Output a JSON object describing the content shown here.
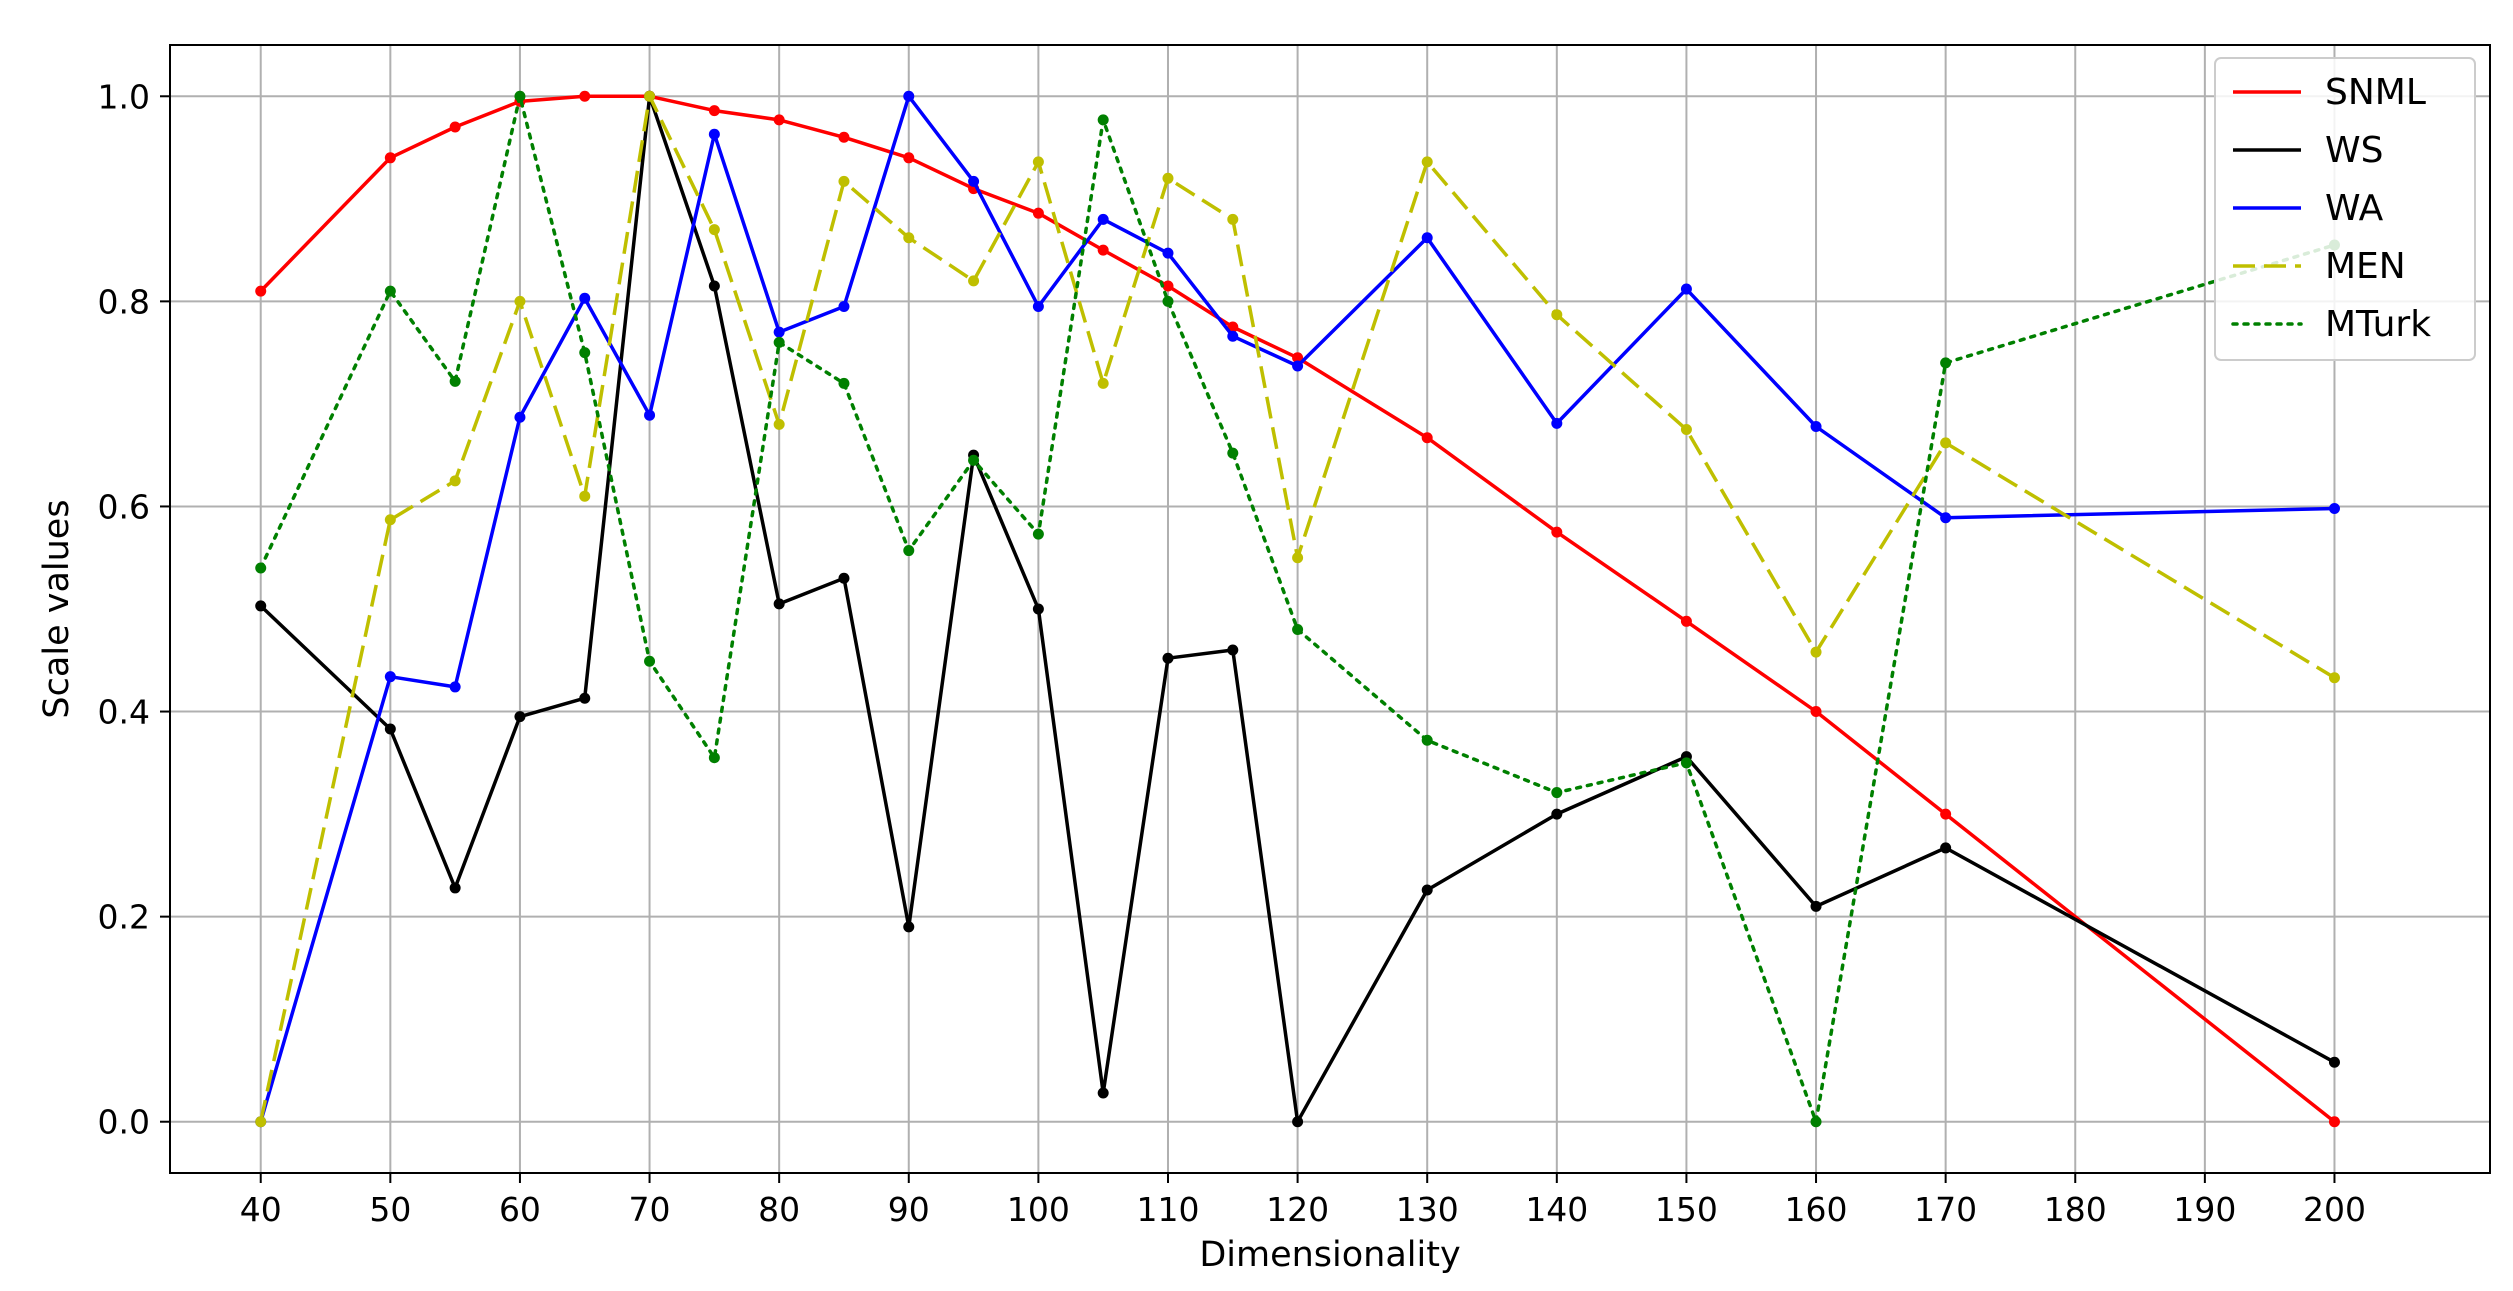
{
  "chart_data": {
    "type": "line",
    "xlabel": "Dimensionality",
    "ylabel": "Scale values",
    "xlim": [
      33,
      212
    ],
    "ylim": [
      -0.05,
      1.05
    ],
    "x_ticks": [
      40,
      50,
      60,
      70,
      80,
      90,
      100,
      110,
      120,
      130,
      140,
      150,
      160,
      170,
      180,
      190,
      200
    ],
    "y_ticks": [
      0.0,
      0.2,
      0.4,
      0.6,
      0.8,
      1.0
    ],
    "y_tick_labels": [
      "0.0",
      "0.2",
      "0.4",
      "0.6",
      "0.8",
      "1.0"
    ],
    "grid": true,
    "legend_position": "top-right",
    "x": [
      40,
      50,
      55,
      60,
      65,
      70,
      75,
      80,
      85,
      90,
      95,
      100,
      105,
      110,
      115,
      120,
      130,
      140,
      150,
      160,
      170,
      200
    ],
    "series": [
      {
        "name": "SNML",
        "color": "#ff0000",
        "style": "solid",
        "values": [
          0.81,
          0.94,
          0.97,
          0.995,
          1.0,
          1.0,
          0.986,
          0.977,
          0.96,
          0.94,
          0.91,
          0.886,
          0.85,
          0.815,
          0.775,
          0.745,
          0.667,
          0.575,
          0.488,
          0.4,
          0.3,
          0.0
        ]
      },
      {
        "name": "WS",
        "color": "#000000",
        "style": "solid",
        "values": [
          0.503,
          0.383,
          0.228,
          0.395,
          0.413,
          1.0,
          0.815,
          0.505,
          0.53,
          0.19,
          0.65,
          0.5,
          0.028,
          0.452,
          0.46,
          0.0,
          0.226,
          0.3,
          0.356,
          0.21,
          0.267,
          0.058
        ]
      },
      {
        "name": "WA",
        "color": "#0000ff",
        "style": "solid",
        "values": [
          0.0,
          0.434,
          0.424,
          0.687,
          0.803,
          0.689,
          0.963,
          0.77,
          0.795,
          1.0,
          0.917,
          0.795,
          0.88,
          0.847,
          0.766,
          0.737,
          0.862,
          0.681,
          0.812,
          0.678,
          0.589,
          0.598
        ]
      },
      {
        "name": "MEN",
        "color": "#bfbf00",
        "style": "dashed",
        "values": [
          0.0,
          0.587,
          0.625,
          0.8,
          0.61,
          1.0,
          0.87,
          0.68,
          0.917,
          0.862,
          0.82,
          0.936,
          0.72,
          0.92,
          0.88,
          0.55,
          0.936,
          0.787,
          0.675,
          0.458,
          0.662,
          0.433
        ]
      },
      {
        "name": "MTurk",
        "color": "#008000",
        "style": "dotted",
        "values": [
          0.54,
          0.81,
          0.722,
          1.0,
          0.75,
          0.449,
          0.355,
          0.76,
          0.72,
          0.557,
          0.645,
          0.573,
          0.977,
          0.8,
          0.652,
          0.48,
          0.372,
          0.321,
          0.35,
          0.0,
          0.74,
          0.855
        ]
      }
    ]
  }
}
